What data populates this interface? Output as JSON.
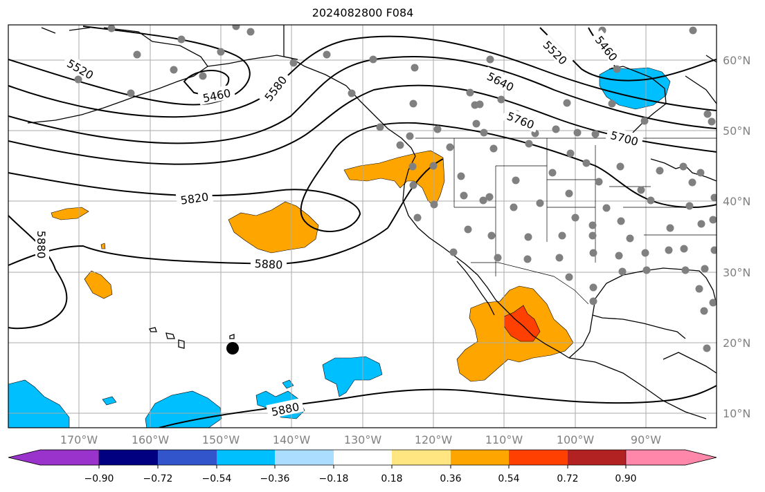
{
  "title": "2024082800 F084",
  "map": {
    "lon_range": [
      -180,
      -80
    ],
    "lat_range": [
      8,
      65
    ],
    "gridlines": true,
    "lon_ticks": [
      "170°W",
      "160°W",
      "150°W",
      "140°W",
      "130°W",
      "120°W",
      "110°W",
      "100°W",
      "90°W"
    ],
    "lat_ticks": [
      "60°N",
      "50°N",
      "40°N",
      "30°N",
      "20°N",
      "10°N"
    ],
    "contour_labels": [
      "5520",
      "5460",
      "5580",
      "5640",
      "5520",
      "5460",
      "5760",
      "5700",
      "5820",
      "5880",
      "5880",
      "5880"
    ],
    "marker": {
      "lon": -148.5,
      "lat": 19,
      "color": "#000000"
    },
    "station_color": "#808080",
    "anomaly_colors": {
      "orange": "#ffa500",
      "red": "#ff4000",
      "blue": "#00bfff"
    }
  },
  "colorbar": {
    "colors": [
      "#9933cc",
      "#000080",
      "#3355cc",
      "#00bfff",
      "#aaddff",
      "#ffffff",
      "#ffe680",
      "#ffa500",
      "#ff4000",
      "#b22222",
      "#ff88aa"
    ],
    "tick_labels": [
      "−0.90",
      "−0.72",
      "−0.54",
      "−0.36",
      "−0.18",
      "0.18",
      "0.36",
      "0.54",
      "0.72",
      "0.90"
    ]
  }
}
